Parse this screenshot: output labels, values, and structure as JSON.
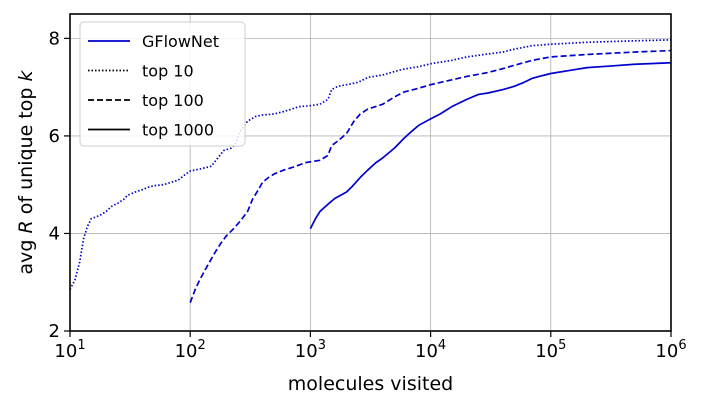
{
  "chart_data": {
    "type": "line",
    "xscale": "log",
    "xlim": [
      10,
      1000000
    ],
    "ylim": [
      2,
      8.5
    ],
    "xlabel": "molecules visited",
    "ylabel_prefix": "avg ",
    "ylabel_R": "R",
    "ylabel_mid": " of unique top ",
    "ylabel_k": "k",
    "xticks": [
      {
        "value": 10,
        "base": "10",
        "exp": "1"
      },
      {
        "value": 100,
        "base": "10",
        "exp": "2"
      },
      {
        "value": 1000,
        "base": "10",
        "exp": "3"
      },
      {
        "value": 10000,
        "base": "10",
        "exp": "4"
      },
      {
        "value": 100000,
        "base": "10",
        "exp": "5"
      },
      {
        "value": 1000000,
        "base": "10",
        "exp": "6"
      }
    ],
    "yticks": [
      2,
      4,
      6,
      8
    ],
    "grid": true,
    "legend_position": "top-left",
    "legend": [
      {
        "label": "GFlowNet",
        "style": "solid",
        "color": "#0000cc"
      },
      {
        "label": "top 10",
        "style": "dotted",
        "color": "#000000"
      },
      {
        "label": "top 100",
        "style": "dashed",
        "color": "#000000"
      },
      {
        "label": "top 1000",
        "style": "solid",
        "color": "#000000"
      }
    ],
    "series": [
      {
        "name": "top 10",
        "style": "dotted",
        "color": "#0000cc",
        "points": [
          [
            10,
            2.85
          ],
          [
            11,
            3.05
          ],
          [
            12,
            3.4
          ],
          [
            13,
            3.9
          ],
          [
            14,
            4.15
          ],
          [
            15,
            4.3
          ],
          [
            18,
            4.38
          ],
          [
            20,
            4.45
          ],
          [
            22,
            4.55
          ],
          [
            25,
            4.62
          ],
          [
            28,
            4.7
          ],
          [
            30,
            4.78
          ],
          [
            35,
            4.85
          ],
          [
            40,
            4.9
          ],
          [
            45,
            4.95
          ],
          [
            50,
            4.98
          ],
          [
            60,
            5.0
          ],
          [
            70,
            5.05
          ],
          [
            80,
            5.1
          ],
          [
            90,
            5.2
          ],
          [
            100,
            5.28
          ],
          [
            120,
            5.32
          ],
          [
            150,
            5.38
          ],
          [
            170,
            5.55
          ],
          [
            190,
            5.7
          ],
          [
            220,
            5.75
          ],
          [
            240,
            5.85
          ],
          [
            260,
            6.1
          ],
          [
            300,
            6.3
          ],
          [
            350,
            6.4
          ],
          [
            400,
            6.43
          ],
          [
            500,
            6.45
          ],
          [
            600,
            6.5
          ],
          [
            700,
            6.55
          ],
          [
            800,
            6.6
          ],
          [
            1000,
            6.62
          ],
          [
            1200,
            6.65
          ],
          [
            1400,
            6.75
          ],
          [
            1500,
            6.95
          ],
          [
            1700,
            7.02
          ],
          [
            2000,
            7.05
          ],
          [
            2500,
            7.1
          ],
          [
            3000,
            7.2
          ],
          [
            4000,
            7.25
          ],
          [
            5000,
            7.32
          ],
          [
            6000,
            7.37
          ],
          [
            8000,
            7.42
          ],
          [
            10000,
            7.48
          ],
          [
            15000,
            7.55
          ],
          [
            20000,
            7.62
          ],
          [
            30000,
            7.68
          ],
          [
            40000,
            7.72
          ],
          [
            50000,
            7.78
          ],
          [
            70000,
            7.85
          ],
          [
            100000,
            7.88
          ],
          [
            200000,
            7.92
          ],
          [
            500000,
            7.95
          ],
          [
            1000000,
            7.97
          ]
        ]
      },
      {
        "name": "top 100",
        "style": "dashed",
        "color": "#0000cc",
        "points": [
          [
            100,
            2.58
          ],
          [
            110,
            2.85
          ],
          [
            120,
            3.05
          ],
          [
            140,
            3.35
          ],
          [
            160,
            3.6
          ],
          [
            180,
            3.8
          ],
          [
            200,
            3.95
          ],
          [
            230,
            4.1
          ],
          [
            260,
            4.25
          ],
          [
            300,
            4.45
          ],
          [
            330,
            4.7
          ],
          [
            370,
            4.9
          ],
          [
            400,
            5.05
          ],
          [
            450,
            5.15
          ],
          [
            500,
            5.22
          ],
          [
            600,
            5.3
          ],
          [
            700,
            5.35
          ],
          [
            800,
            5.4
          ],
          [
            900,
            5.45
          ],
          [
            1000,
            5.47
          ],
          [
            1200,
            5.5
          ],
          [
            1400,
            5.6
          ],
          [
            1500,
            5.8
          ],
          [
            1700,
            5.9
          ],
          [
            2000,
            6.05
          ],
          [
            2300,
            6.3
          ],
          [
            2600,
            6.45
          ],
          [
            3000,
            6.55
          ],
          [
            4000,
            6.65
          ],
          [
            5000,
            6.8
          ],
          [
            6000,
            6.9
          ],
          [
            8000,
            6.98
          ],
          [
            10000,
            7.05
          ],
          [
            15000,
            7.15
          ],
          [
            20000,
            7.22
          ],
          [
            30000,
            7.3
          ],
          [
            40000,
            7.38
          ],
          [
            50000,
            7.45
          ],
          [
            70000,
            7.55
          ],
          [
            100000,
            7.62
          ],
          [
            200000,
            7.67
          ],
          [
            500000,
            7.72
          ],
          [
            1000000,
            7.75
          ]
        ]
      },
      {
        "name": "top 1000",
        "style": "solid",
        "color": "#0000cc",
        "points": [
          [
            1000,
            4.1
          ],
          [
            1100,
            4.3
          ],
          [
            1200,
            4.45
          ],
          [
            1400,
            4.6
          ],
          [
            1600,
            4.72
          ],
          [
            2000,
            4.85
          ],
          [
            2200,
            4.95
          ],
          [
            2600,
            5.15
          ],
          [
            3000,
            5.3
          ],
          [
            3500,
            5.45
          ],
          [
            4000,
            5.55
          ],
          [
            5000,
            5.75
          ],
          [
            6000,
            5.95
          ],
          [
            7000,
            6.1
          ],
          [
            8000,
            6.22
          ],
          [
            10000,
            6.35
          ],
          [
            12000,
            6.45
          ],
          [
            15000,
            6.6
          ],
          [
            20000,
            6.75
          ],
          [
            25000,
            6.85
          ],
          [
            30000,
            6.88
          ],
          [
            40000,
            6.95
          ],
          [
            50000,
            7.02
          ],
          [
            60000,
            7.1
          ],
          [
            70000,
            7.18
          ],
          [
            80000,
            7.22
          ],
          [
            100000,
            7.28
          ],
          [
            150000,
            7.35
          ],
          [
            200000,
            7.4
          ],
          [
            300000,
            7.43
          ],
          [
            500000,
            7.47
          ],
          [
            1000000,
            7.5
          ]
        ]
      }
    ]
  }
}
